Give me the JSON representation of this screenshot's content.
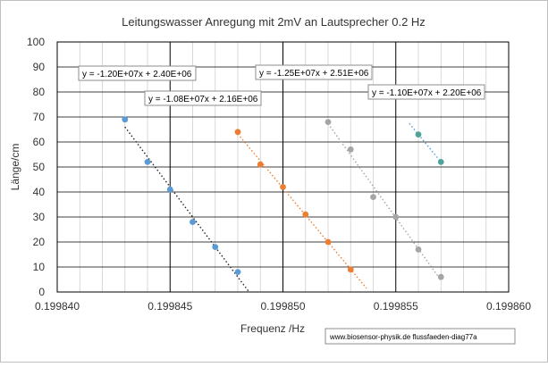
{
  "chart_data": {
    "type": "scatter",
    "title": "Leitungswasser Anregung mit 2mV an Lautsprecher 0.2 Hz",
    "xlabel": "Frequenz /Hz",
    "ylabel": "Länge/cm",
    "xlim": [
      0.19984,
      0.19986
    ],
    "ylim": [
      0,
      100
    ],
    "x_ticks": [
      "0.199840",
      "0.199845",
      "0.199850",
      "0.199855",
      "0.199860"
    ],
    "y_ticks": [
      "0",
      "10",
      "20",
      "30",
      "40",
      "50",
      "60",
      "70",
      "80",
      "90",
      "100"
    ],
    "grid": true,
    "series": [
      {
        "color": "#5b9bd5",
        "trend_color": "#222222",
        "points": [
          {
            "x": 0.199843,
            "y": 69
          },
          {
            "x": 0.199844,
            "y": 52
          },
          {
            "x": 0.199845,
            "y": 41
          },
          {
            "x": 0.199846,
            "y": 28
          },
          {
            "x": 0.199847,
            "y": 18
          },
          {
            "x": 0.199848,
            "y": 8
          }
        ],
        "trendline": {
          "x_start": 0.199843,
          "x_end": 0.1998485
        }
      },
      {
        "color": "#ed7d31",
        "trend_color": "#ed7d31",
        "points": [
          {
            "x": 0.199848,
            "y": 64
          },
          {
            "x": 0.199849,
            "y": 51
          },
          {
            "x": 0.19985,
            "y": 42
          },
          {
            "x": 0.199851,
            "y": 31
          },
          {
            "x": 0.199852,
            "y": 20
          },
          {
            "x": 0.199853,
            "y": 9
          }
        ],
        "trendline": {
          "x_start": 0.199848,
          "x_end": 0.1998537
        }
      },
      {
        "color": "#a5a5a5",
        "trend_color": "#a5a5a5",
        "points": [
          {
            "x": 0.199852,
            "y": 68
          },
          {
            "x": 0.199853,
            "y": 57
          },
          {
            "x": 0.199854,
            "y": 38
          },
          {
            "x": 0.199855,
            "y": 30
          },
          {
            "x": 0.199856,
            "y": 17
          },
          {
            "x": 0.199857,
            "y": 6
          }
        ],
        "trendline": {
          "x_start": 0.199852,
          "x_end": 0.199857
        }
      },
      {
        "color": "#4fa39b",
        "trend_color": "#5b9bd5",
        "points": [
          {
            "x": 0.199856,
            "y": 63
          },
          {
            "x": 0.199857,
            "y": 52
          }
        ],
        "trendline": {
          "x_start": 0.1998556,
          "x_end": 0.199857
        }
      }
    ],
    "annotations": [
      "y = -1.20E+07x + 2.40E+06",
      "y = -1.08E+07x + 2.16E+06",
      "y = -1.25E+07x + 2.51E+06",
      "y = -1.10E+07x + 2.20E+06",
      "www.biosensor-physik.de  flussfaeden-diag77a"
    ]
  }
}
